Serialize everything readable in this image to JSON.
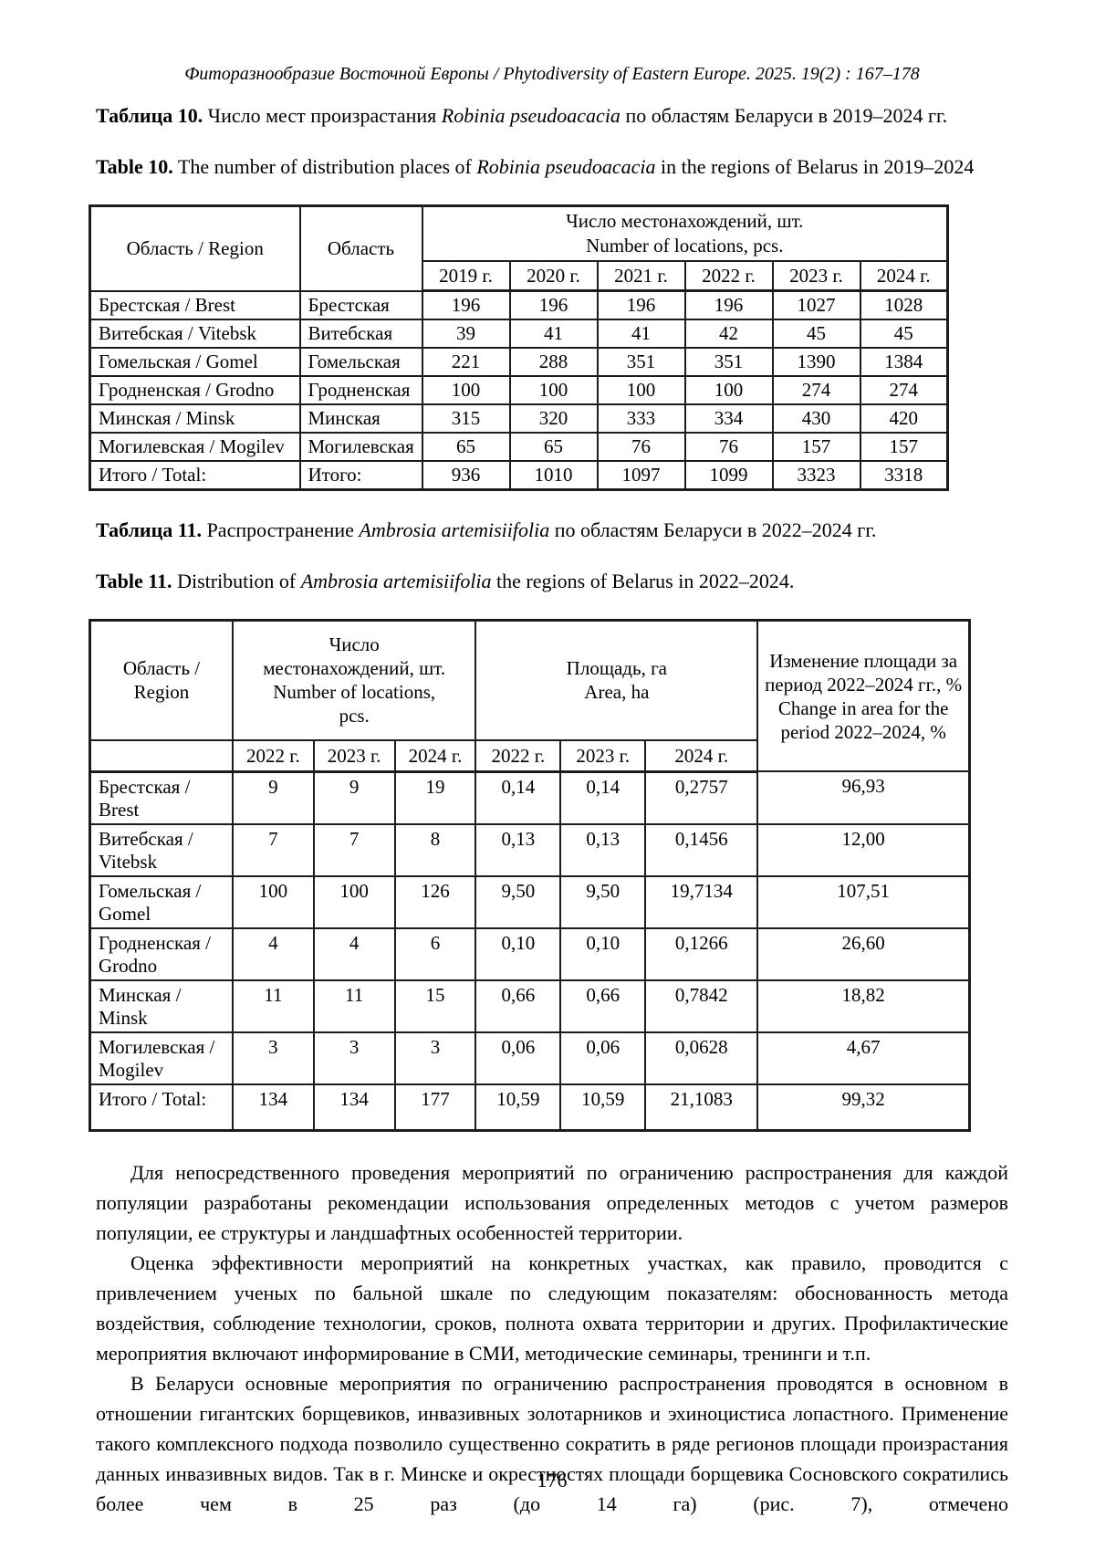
{
  "page": {
    "running_head": "Фиторазнообразие Восточной Европы / Phytodiversity of Eastern Europe. 2025. 19(2) : 167–178",
    "page_number": "176"
  },
  "table10": {
    "caption_ru": {
      "label": "Таблица 10.",
      "mid": " Число мест произрастания ",
      "species": "Robinia pseudoacacia",
      "tail": " по областям Беларуси в 2019–2024 гг."
    },
    "caption_en": {
      "label": "Table 10.",
      "mid": " The number of distribution places of ",
      "species": "Robinia pseudoacacia",
      "tail": " in the regions of Belarus in 2019–2024"
    },
    "header": {
      "col_region": "Область / Region",
      "col_oblast": "Область",
      "group_ru": "Число местонахождений, шт.",
      "group_en": "Number of locations, pcs.",
      "years": [
        "2019 г.",
        "2020 г.",
        "2021 г.",
        "2022 г.",
        "2023 г.",
        "2024 г."
      ]
    },
    "rows": [
      {
        "region": "Брестская / Brest",
        "oblast": "Брестская",
        "values": [
          "196",
          "196",
          "196",
          "196",
          "1027",
          "1028"
        ]
      },
      {
        "region": "Витебская / Vitebsk",
        "oblast": "Витебская",
        "values": [
          "39",
          "41",
          "41",
          "42",
          "45",
          "45"
        ]
      },
      {
        "region": "Гомельская / Gomel",
        "oblast": "Гомельская",
        "values": [
          "221",
          "288",
          "351",
          "351",
          "1390",
          "1384"
        ]
      },
      {
        "region": "Гродненская / Grodno",
        "oblast": "Гродненская",
        "values": [
          "100",
          "100",
          "100",
          "100",
          "274",
          "274"
        ]
      },
      {
        "region": "Минская / Minsk",
        "oblast": "Минская",
        "values": [
          "315",
          "320",
          "333",
          "334",
          "430",
          "420"
        ]
      },
      {
        "region": "Могилевская / Mogilev",
        "oblast": "Могилевская",
        "values": [
          "65",
          "65",
          "76",
          "76",
          "157",
          "157"
        ]
      },
      {
        "region": "Итого / Total:",
        "oblast": "Итого:",
        "values": [
          "936",
          "1010",
          "1097",
          "1099",
          "3323",
          "3318"
        ]
      }
    ]
  },
  "table11": {
    "caption_ru": {
      "label": "Таблица 11.",
      "mid": " Распространение ",
      "species": "Ambrosia artemisiifolia",
      "tail": " по областям Беларуси в 2022–2024 гг."
    },
    "caption_en": {
      "label": "Table 11.",
      "mid": " Distribution of ",
      "species": "Ambrosia artemisiifolia",
      "tail": " the regions of Belarus in 2022–2024."
    },
    "header": {
      "col_region": "Область / Region",
      "group_locations_ru": "Число местонахождений, шт.",
      "group_locations_en": "Number of locations, pcs.",
      "group_area_ru": "Площадь, га",
      "group_area_en": "Area, ha",
      "col_change_ru": "Изменение площади за период 2022–2024 гг., %",
      "col_change_en": "Change in area for the period 2022–2024, %",
      "years": [
        "2022 г.",
        "2023 г.",
        "2024 г.",
        "2022 г.",
        "2023 г.",
        "2024 г."
      ]
    },
    "rows": [
      {
        "region": "Брестская / Brest",
        "values": [
          "9",
          "9",
          "19",
          "0,14",
          "0,14",
          "0,2757",
          "96,93"
        ]
      },
      {
        "region": "Витебская / Vitebsk",
        "values": [
          "7",
          "7",
          "8",
          "0,13",
          "0,13",
          "0,1456",
          "12,00"
        ]
      },
      {
        "region": "Гомельская / Gomel",
        "values": [
          "100",
          "100",
          "126",
          "9,50",
          "9,50",
          "19,7134",
          "107,51"
        ]
      },
      {
        "region": "Гродненская / Grodno",
        "values": [
          "4",
          "4",
          "6",
          "0,10",
          "0,10",
          "0,1266",
          "26,60"
        ]
      },
      {
        "region": "Минская / Minsk",
        "values": [
          "11",
          "11",
          "15",
          "0,66",
          "0,66",
          "0,7842",
          "18,82"
        ]
      },
      {
        "region": "Могилевская / Mogilev",
        "values": [
          "3",
          "3",
          "3",
          "0,06",
          "0,06",
          "0,0628",
          "4,67"
        ]
      },
      {
        "region": "Итого / Total:",
        "values": [
          "134",
          "134",
          "177",
          "10,59",
          "10,59",
          "21,1083",
          "99,32"
        ]
      }
    ]
  },
  "body": {
    "p1": "Для непосредственного проведения мероприятий по ограничению распространения для каждой популяции разработаны рекомендации использования определенных методов с учетом размеров популяции, ее структуры и ландшафтных особенностей территории.",
    "p2": "Оценка эффективности мероприятий на конкретных участках, как правило, проводится с привлечением ученых по бальной шкале по следующим показателям: обоснованность метода воздействия, соблюдение технологии, сроков, полнота охвата территории и других. Профилактические мероприятия включают информирование в СМИ, методические семинары, тренинги и т.п.",
    "p3": "В Беларуси основные мероприятия по ограничению распространения проводятся в основном в отношении гигантских борщевиков, инвазивных золотарников и эхиноцистиса лопастного. Применение такого комплексного подхода позволило существенно сократить в ряде регионов площади произрастания данных инвазивных видов. Так в г. Минске и окрестностях площади борщевика Сосновского сократились более чем в 25 раз (до 14 га) (рис. 7), отмечено"
  }
}
